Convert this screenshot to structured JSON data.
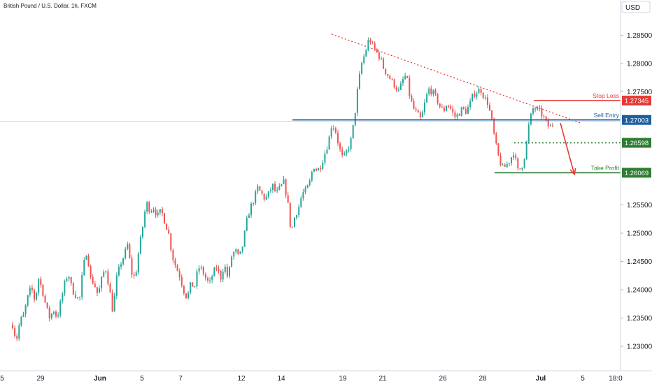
{
  "chart_data": {
    "type": "candlestick",
    "title": "British Pound / U.S. Dollar, 1h, FXCM",
    "currency": "USD",
    "ylim": [
      1.2262,
      1.2898
    ],
    "y_ticks": [
      "1.28500",
      "1.28000",
      "1.27500",
      "1.27003",
      "1.26598",
      "1.26069",
      "1.25500",
      "1.25000",
      "1.24500",
      "1.24000",
      "1.23500",
      "1.23000"
    ],
    "x_ticks": [
      "5",
      "29",
      "Jun",
      "5",
      "7",
      "12",
      "14",
      "19",
      "21",
      "26",
      "28",
      "Jul",
      "5",
      "18:0"
    ],
    "price_path": [
      1.2338,
      1.231,
      1.2345,
      1.2355,
      1.2385,
      1.2405,
      1.238,
      1.242,
      1.24,
      1.237,
      1.235,
      1.2365,
      1.235,
      1.238,
      1.241,
      1.243,
      1.24,
      1.239,
      1.238,
      1.244,
      1.247,
      1.242,
      1.241,
      1.239,
      1.242,
      1.244,
      1.2405,
      1.236,
      1.242,
      1.2445,
      1.246,
      1.248,
      1.243,
      1.242,
      1.247,
      1.251,
      1.2555,
      1.254,
      1.2545,
      1.253,
      1.254,
      1.252,
      1.25,
      1.246,
      1.244,
      1.2425,
      1.24,
      1.2385,
      1.241,
      1.2405,
      1.244,
      1.2435,
      1.242,
      1.241,
      1.243,
      1.244,
      1.242,
      1.2445,
      1.242,
      1.246,
      1.247,
      1.2455,
      1.248,
      1.252,
      1.2545,
      1.256,
      1.258,
      1.257,
      1.256,
      1.257,
      1.2585,
      1.257,
      1.258,
      1.259,
      1.256,
      1.25,
      1.253,
      1.2545,
      1.257,
      1.2575,
      1.259,
      1.262,
      1.261,
      1.262,
      1.264,
      1.266,
      1.2695,
      1.268,
      1.265,
      1.263,
      1.2645,
      1.266,
      1.27,
      1.276,
      1.28,
      1.282,
      1.2845,
      1.283,
      1.282,
      1.281,
      1.279,
      1.278,
      1.277,
      1.276,
      1.275,
      1.277,
      1.278,
      1.274,
      1.272,
      1.271,
      1.27,
      1.273,
      1.2755,
      1.275,
      1.274,
      1.2725,
      1.2715,
      1.273,
      1.272,
      1.2705,
      1.271,
      1.272,
      1.2715,
      1.2725,
      1.2745,
      1.275,
      1.2755,
      1.274,
      1.273,
      1.27,
      1.266,
      1.263,
      1.2615,
      1.262,
      1.263,
      1.2645,
      1.261,
      1.2615,
      1.264,
      1.269,
      1.272,
      1.272,
      1.2715,
      1.2705,
      1.269,
      1.2688,
      1.27
    ],
    "trendline": {
      "start": 1.2852,
      "end": 1.2695,
      "style": "dotted",
      "color": "#e53935"
    },
    "levels": [
      {
        "name": "Stop Loss",
        "value": 1.27345,
        "label": "1.27345",
        "color": "#e53935",
        "style": "solid"
      },
      {
        "name": "Sell Entry",
        "value": 1.27003,
        "label": "1.27003",
        "color": "#1e5fa0",
        "style": "solid"
      },
      {
        "name": "",
        "value": 1.26598,
        "label": "1.26598",
        "color": "#2e7d32",
        "style": "dotted"
      },
      {
        "name": "Take Profit",
        "value": 1.26069,
        "label": "1.26069",
        "color": "#2e7d32",
        "style": "solid"
      }
    ],
    "colors": {
      "up": "#26a69a",
      "down": "#ef5350",
      "axis": "#131722",
      "arrow": "#e53935",
      "crosshair": "#26a69a"
    },
    "grid": false
  }
}
